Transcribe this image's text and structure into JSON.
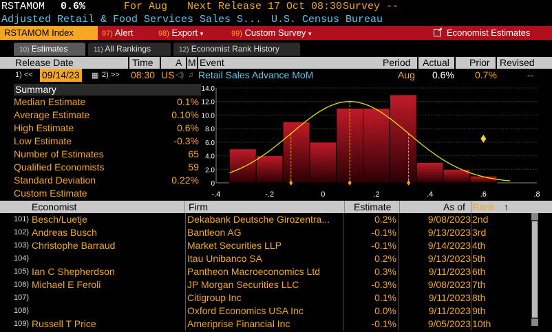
{
  "header": {
    "ticker": "RSTAMOM",
    "value": "0.6%",
    "for_label": "For Aug",
    "next_release": "Next Release 17 Oct 08:30",
    "survey": "Survey --",
    "subtitle": "Adjusted Retail & Food Services Sales S...",
    "source": "U.S. Census Bureau"
  },
  "toolbar": {
    "index_label": "RSTAMOM Index",
    "alert_num": "97)",
    "alert_label": "Alert",
    "export_num": "98)",
    "export_label": "Export",
    "custom_num": "99)",
    "custom_label": "Custom Survey",
    "economist_label": "Economist Estimates"
  },
  "tabs": [
    {
      "num": "10)",
      "label": "Estimates"
    },
    {
      "num": "11)",
      "label": "All Rankings"
    },
    {
      "num": "12)",
      "label": "Economist Rank History"
    }
  ],
  "release_header": {
    "release_date": "Release Date",
    "time": "Time",
    "a": "A",
    "m": "M",
    "event": "Event",
    "period": "Period",
    "actual": "Actual",
    "prior": "Prior",
    "revised": "Revised"
  },
  "release_row": {
    "nav_prev": "1) <<",
    "date": "09/14/23",
    "nav_next": "2) >>",
    "time": "08:30",
    "country": "US",
    "event": "Retail Sales Advance MoM",
    "period": "Aug",
    "actual": "0.6%",
    "prior": "0.7%",
    "revised": "--"
  },
  "summary": {
    "title": "Summary",
    "rows": [
      {
        "label": "Median Estimate",
        "value": "0.1%"
      },
      {
        "label": "Average Estimate",
        "value": "0.10%"
      },
      {
        "label": "High Estimate",
        "value": "0.6%"
      },
      {
        "label": "Low Estimate",
        "value": "-0.3%"
      },
      {
        "label": "Number of Estimates",
        "value": "65"
      },
      {
        "label": "Qualified Economists",
        "value": "59"
      },
      {
        "label": "Standard Deviation",
        "value": "0.22%"
      },
      {
        "label": "Custom Estimate",
        "value": ""
      }
    ]
  },
  "chart_data": {
    "type": "bar",
    "title": "",
    "xlabel": "",
    "ylabel": "",
    "xlim": [
      -0.4,
      0.8
    ],
    "ylim": [
      0,
      14
    ],
    "x_ticks": [
      "-.4",
      "-.2",
      "0",
      ".2",
      ".4",
      ".6",
      ".8"
    ],
    "y_ticks": [
      "0",
      "2.0",
      "4.0",
      "6.0",
      "8.0",
      "10.0",
      "12.0",
      "14.0"
    ],
    "bins": [
      {
        "start": -0.35,
        "end": -0.25,
        "value": 5
      },
      {
        "start": -0.25,
        "end": -0.15,
        "value": 4
      },
      {
        "start": -0.15,
        "end": -0.05,
        "value": 9
      },
      {
        "start": -0.05,
        "end": 0.05,
        "value": 6
      },
      {
        "start": 0.05,
        "end": 0.15,
        "value": 11
      },
      {
        "start": 0.15,
        "end": 0.25,
        "value": 11
      },
      {
        "start": 0.25,
        "end": 0.35,
        "value": 13
      },
      {
        "start": 0.35,
        "end": 0.45,
        "value": 3
      },
      {
        "start": 0.45,
        "end": 0.55,
        "value": 2
      },
      {
        "start": 0.55,
        "end": 0.65,
        "value": 1
      }
    ],
    "normal_curve": {
      "mean": 0.1,
      "sd": 0.22,
      "peak": 12
    },
    "markers": [
      -0.12,
      0.1,
      0.32
    ],
    "actual_marker": {
      "x": 0.6,
      "y": 6.5
    },
    "colors": {
      "bar": "#7a0a12",
      "bar_top": "#c21a28",
      "curve": "#e8e000",
      "marker": "#f5a623",
      "actual": "#f5d033"
    }
  },
  "table": {
    "headers": {
      "economist": "Economist",
      "firm": "Firm",
      "estimate": "Estimate",
      "asof": "As of",
      "rank": "Rank"
    },
    "rows": [
      {
        "idx": "101)",
        "economist": "Besch/Luetje",
        "firm": "Dekabank Deutsche Girozentra...",
        "estimate": "0.2%",
        "asof": "9/08/2023",
        "rank": "2nd"
      },
      {
        "idx": "102)",
        "economist": "Andreas Busch",
        "firm": "Bantleon AG",
        "estimate": "-0.1%",
        "asof": "9/13/2023",
        "rank": "3rd"
      },
      {
        "idx": "103)",
        "economist": "Christophe Barraud",
        "firm": "Market Securities LLP",
        "estimate": "-0.1%",
        "asof": "9/14/2023",
        "rank": "4th"
      },
      {
        "idx": "104)",
        "economist": "",
        "firm": "Itau Unibanco SA",
        "estimate": "0.2%",
        "asof": "9/13/2023",
        "rank": "5th"
      },
      {
        "idx": "105)",
        "economist": "Ian C Shepherdson",
        "firm": "Pantheon Macroeconomics Ltd",
        "estimate": "0.3%",
        "asof": "9/11/2023",
        "rank": "6th"
      },
      {
        "idx": "106)",
        "economist": "Michael E Feroli",
        "firm": "JP Morgan Securities LLC",
        "estimate": "-0.3%",
        "asof": "9/08/2023",
        "rank": "7th"
      },
      {
        "idx": "107)",
        "economist": "",
        "firm": "Citigroup Inc",
        "estimate": "0.1%",
        "asof": "9/11/2023",
        "rank": "8th"
      },
      {
        "idx": "108)",
        "economist": "",
        "firm": "Oxford Economics USA Inc",
        "estimate": "0.0%",
        "asof": "9/11/2023",
        "rank": "9th"
      },
      {
        "idx": "109)",
        "economist": "Russell T Price",
        "firm": "Ameriprise Financial Inc",
        "estimate": "-0.1%",
        "asof": "9/05/2023",
        "rank": "10th"
      }
    ]
  }
}
